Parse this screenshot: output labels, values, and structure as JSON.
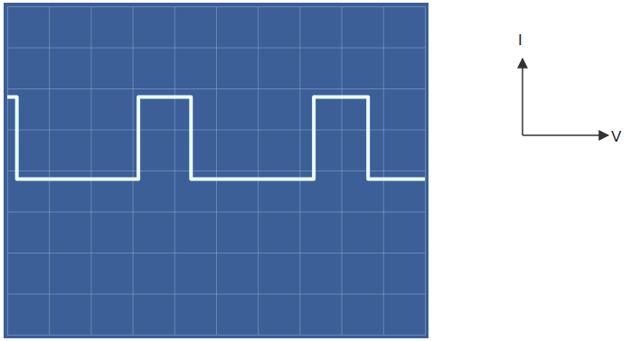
{
  "chart_data": {
    "type": "line",
    "x_label": "V",
    "y_label": "I",
    "x": [
      0,
      0.22,
      0.22,
      3.13,
      3.13,
      4.39,
      4.39,
      7.33,
      7.33,
      8.63,
      8.63,
      10
    ],
    "values": [
      5.8,
      5.8,
      3.8,
      3.8,
      5.8,
      5.8,
      3.8,
      3.8,
      5.8,
      5.8,
      3.8,
      3.8
    ],
    "color": "#eafff6",
    "xlim": [
      0,
      10
    ],
    "xticks": [
      0,
      1,
      2,
      3,
      4,
      5,
      6,
      7,
      8,
      9,
      10
    ],
    "ylim": [
      0,
      8
    ],
    "yticks": [
      0,
      1,
      2,
      3,
      4,
      5,
      6,
      7,
      8
    ],
    "grid": true,
    "tick_labels": false
  }
}
